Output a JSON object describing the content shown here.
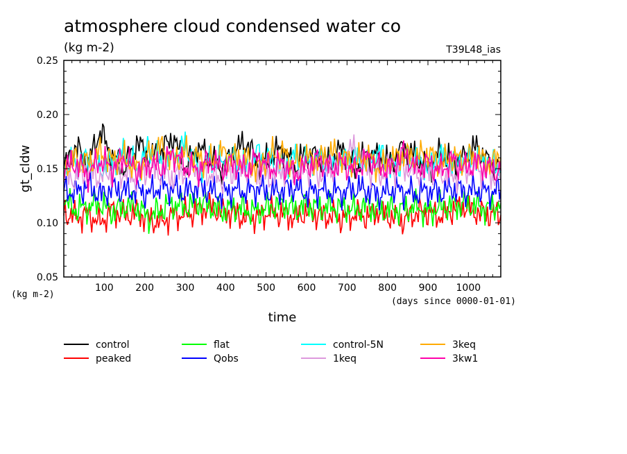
{
  "chart_data": {
    "type": "line",
    "title": "atmosphere cloud condensed water co",
    "subtitle": "(kg m-2)",
    "experiment": "T39L48_ias",
    "ylabel": "gt_cldw",
    "yunit": "(kg m-2)",
    "xlabel": "time",
    "xunit": "(days since 0000-01-01)",
    "xlim": [
      0,
      1080
    ],
    "ylim": [
      0.05,
      0.25
    ],
    "xticks": [
      100,
      200,
      300,
      400,
      500,
      600,
      700,
      800,
      900,
      1000
    ],
    "xtick_labels": [
      "100",
      "200",
      "300",
      "400",
      "500",
      "600",
      "700",
      "800",
      "900",
      "1000"
    ],
    "yticks": [
      0.05,
      0.1,
      0.15,
      0.2,
      0.25
    ],
    "ytick_labels": [
      "0.05",
      "0.10",
      "0.15",
      "0.20",
      "0.25"
    ],
    "grid": false,
    "legend_position": "below",
    "series": [
      {
        "name": "control",
        "color": "#000000",
        "x": [
          0,
          30,
          60,
          90,
          120,
          150,
          180,
          210,
          240,
          270,
          300,
          330,
          360,
          390,
          420,
          450,
          480,
          510,
          540,
          570,
          600,
          630,
          660,
          690,
          720,
          750,
          780,
          810,
          840,
          870,
          900,
          930,
          960,
          990,
          1020,
          1050,
          1080
        ],
        "values": [
          0.15,
          0.17,
          0.155,
          0.185,
          0.16,
          0.15,
          0.175,
          0.16,
          0.165,
          0.18,
          0.15,
          0.17,
          0.16,
          0.15,
          0.165,
          0.175,
          0.155,
          0.16,
          0.17,
          0.15,
          0.165,
          0.16,
          0.155,
          0.17,
          0.15,
          0.165,
          0.16,
          0.155,
          0.17,
          0.16,
          0.15,
          0.165,
          0.155,
          0.16,
          0.17,
          0.155,
          0.15
        ]
      },
      {
        "name": "peaked",
        "color": "#ff0000",
        "x": [
          0,
          30,
          60,
          90,
          120,
          150,
          180,
          210,
          240,
          270,
          300,
          330,
          360,
          390,
          420,
          450,
          480,
          510,
          540,
          570,
          600,
          630,
          660,
          690,
          720,
          750,
          780,
          810,
          840,
          870,
          900,
          930,
          960,
          990,
          1020,
          1050,
          1080
        ],
        "values": [
          0.11,
          0.105,
          0.108,
          0.1,
          0.112,
          0.106,
          0.11,
          0.103,
          0.1,
          0.108,
          0.107,
          0.112,
          0.114,
          0.11,
          0.109,
          0.104,
          0.106,
          0.11,
          0.108,
          0.105,
          0.11,
          0.107,
          0.106,
          0.104,
          0.108,
          0.106,
          0.111,
          0.105,
          0.102,
          0.109,
          0.11,
          0.106,
          0.112,
          0.115,
          0.11,
          0.108,
          0.107
        ]
      },
      {
        "name": "flat",
        "color": "#00ff00",
        "x": [
          0,
          30,
          60,
          90,
          120,
          150,
          180,
          210,
          240,
          270,
          300,
          330,
          360,
          390,
          420,
          450,
          480,
          510,
          540,
          570,
          600,
          630,
          660,
          690,
          720,
          750,
          780,
          810,
          840,
          870,
          900,
          930,
          960,
          990,
          1020,
          1050,
          1080
        ],
        "values": [
          0.12,
          0.112,
          0.115,
          0.118,
          0.11,
          0.116,
          0.114,
          0.105,
          0.112,
          0.117,
          0.115,
          0.118,
          0.116,
          0.11,
          0.114,
          0.112,
          0.11,
          0.115,
          0.117,
          0.112,
          0.116,
          0.113,
          0.115,
          0.114,
          0.112,
          0.116,
          0.11,
          0.113,
          0.112,
          0.115,
          0.11,
          0.114,
          0.116,
          0.117,
          0.115,
          0.113,
          0.118
        ]
      },
      {
        "name": "Qobs",
        "color": "#0000ff",
        "x": [
          0,
          30,
          60,
          90,
          120,
          150,
          180,
          210,
          240,
          270,
          300,
          330,
          360,
          390,
          420,
          450,
          480,
          510,
          540,
          570,
          600,
          630,
          660,
          690,
          720,
          750,
          780,
          810,
          840,
          870,
          900,
          930,
          960,
          990,
          1020,
          1050,
          1080
        ],
        "values": [
          0.13,
          0.128,
          0.135,
          0.125,
          0.132,
          0.129,
          0.13,
          0.127,
          0.134,
          0.131,
          0.128,
          0.133,
          0.13,
          0.126,
          0.131,
          0.129,
          0.132,
          0.128,
          0.13,
          0.133,
          0.127,
          0.131,
          0.129,
          0.128,
          0.132,
          0.13,
          0.126,
          0.131,
          0.129,
          0.127,
          0.13,
          0.128,
          0.132,
          0.129,
          0.131,
          0.128,
          0.13
        ]
      },
      {
        "name": "control-5N",
        "color": "#00ffff",
        "x": [
          0,
          30,
          60,
          90,
          120,
          150,
          180,
          210,
          240,
          270,
          300,
          330,
          360,
          390,
          420,
          450,
          480,
          510,
          540,
          570,
          600,
          630,
          660,
          690,
          720,
          750,
          780,
          810,
          840,
          870,
          900,
          930,
          960,
          990,
          1020,
          1050,
          1080
        ],
        "values": [
          0.15,
          0.155,
          0.16,
          0.15,
          0.158,
          0.165,
          0.15,
          0.17,
          0.155,
          0.16,
          0.172,
          0.15,
          0.158,
          0.155,
          0.16,
          0.15,
          0.165,
          0.158,
          0.15,
          0.162,
          0.155,
          0.16,
          0.152,
          0.158,
          0.16,
          0.155,
          0.165,
          0.15,
          0.158,
          0.16,
          0.15,
          0.163,
          0.155,
          0.158,
          0.16,
          0.155,
          0.15
        ]
      },
      {
        "name": "1keq",
        "color": "#dd99dd",
        "x": [
          0,
          30,
          60,
          90,
          120,
          150,
          180,
          210,
          240,
          270,
          300,
          330,
          360,
          390,
          420,
          450,
          480,
          510,
          540,
          570,
          600,
          630,
          660,
          690,
          720,
          750,
          780,
          810,
          840,
          870,
          900,
          930,
          960,
          990,
          1020,
          1050,
          1080
        ],
        "values": [
          0.145,
          0.14,
          0.15,
          0.142,
          0.148,
          0.145,
          0.14,
          0.15,
          0.146,
          0.142,
          0.148,
          0.15,
          0.145,
          0.14,
          0.147,
          0.15,
          0.145,
          0.142,
          0.148,
          0.146,
          0.15,
          0.144,
          0.148,
          0.16,
          0.17,
          0.15,
          0.145,
          0.148,
          0.152,
          0.145,
          0.15,
          0.146,
          0.142,
          0.148,
          0.15,
          0.145,
          0.14
        ]
      },
      {
        "name": "3keq",
        "color": "#ffaa00",
        "x": [
          0,
          30,
          60,
          90,
          120,
          150,
          180,
          210,
          240,
          270,
          300,
          330,
          360,
          390,
          420,
          450,
          480,
          510,
          540,
          570,
          600,
          630,
          660,
          690,
          720,
          750,
          780,
          810,
          840,
          870,
          900,
          930,
          960,
          990,
          1020,
          1050,
          1080
        ],
        "values": [
          0.15,
          0.16,
          0.155,
          0.165,
          0.158,
          0.16,
          0.15,
          0.162,
          0.17,
          0.158,
          0.165,
          0.16,
          0.155,
          0.165,
          0.16,
          0.158,
          0.15,
          0.162,
          0.165,
          0.155,
          0.16,
          0.158,
          0.165,
          0.16,
          0.155,
          0.162,
          0.15,
          0.158,
          0.163,
          0.16,
          0.165,
          0.155,
          0.16,
          0.158,
          0.162,
          0.155,
          0.16
        ]
      },
      {
        "name": "3kw1",
        "color": "#ff00aa",
        "x": [
          0,
          30,
          60,
          90,
          120,
          150,
          180,
          210,
          240,
          270,
          300,
          330,
          360,
          390,
          420,
          450,
          480,
          510,
          540,
          570,
          600,
          630,
          660,
          690,
          720,
          750,
          780,
          810,
          840,
          870,
          900,
          930,
          960,
          990,
          1020,
          1050,
          1080
        ],
        "values": [
          0.15,
          0.155,
          0.145,
          0.158,
          0.15,
          0.16,
          0.148,
          0.155,
          0.15,
          0.165,
          0.152,
          0.148,
          0.158,
          0.15,
          0.155,
          0.148,
          0.16,
          0.15,
          0.155,
          0.145,
          0.152,
          0.158,
          0.15,
          0.155,
          0.148,
          0.16,
          0.152,
          0.15,
          0.165,
          0.15,
          0.155,
          0.148,
          0.158,
          0.15,
          0.155,
          0.15,
          0.148
        ]
      }
    ]
  }
}
